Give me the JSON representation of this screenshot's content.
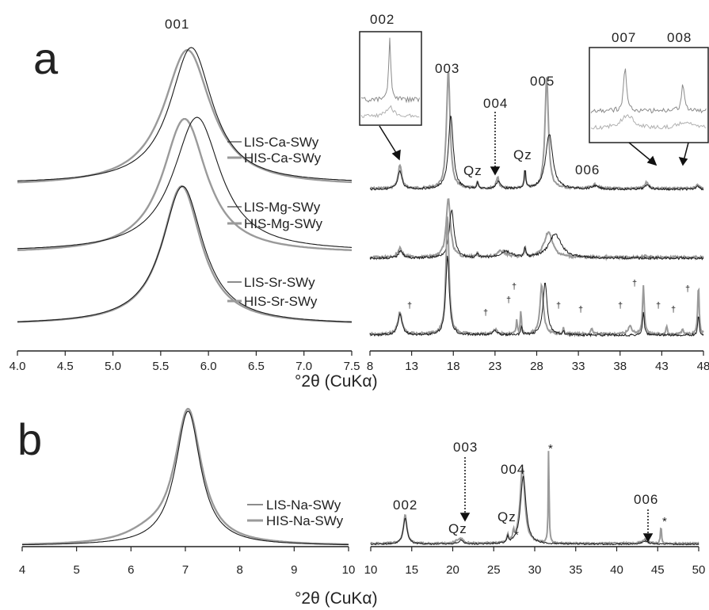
{
  "colors": {
    "LIS": "#1a1a1a",
    "HIS": "#9a9a9a",
    "axis": "#222222"
  },
  "panel_a": {
    "label": "a",
    "xlabel": "°2θ (CuKα)",
    "peak_001": "001",
    "legends": [
      [
        "LIS-Ca-SWy",
        "HIS-Ca-SWy"
      ],
      [
        "LIS-Mg-SWy",
        "HIS-Mg-SWy"
      ],
      [
        "LIS-Sr-SWy",
        "HIS-Sr-SWy"
      ]
    ],
    "right_peaks": {
      "p002": "002",
      "p003": "003",
      "p004": "004",
      "p005": "005",
      "p006": "006",
      "p007": "007",
      "p008": "008",
      "qz": "Qz",
      "dagger": "†"
    }
  },
  "panel_b": {
    "label": "b",
    "xlabel": "°2θ (CuKα)",
    "legends": [
      "LIS-Na-SWy",
      "HIS-Na-SWy"
    ],
    "right_peaks": {
      "p002": "002",
      "p003": "003",
      "p004": "004",
      "p006": "006",
      "qz": "Qz",
      "star": "*"
    }
  },
  "chart_data": [
    {
      "type": "line",
      "panel": "a-left",
      "xlim": [
        4.0,
        7.5
      ],
      "xticks": [
        "4.0",
        "4.5",
        "5.0",
        "5.5",
        "6.0",
        "6.5",
        "7.0",
        "7.5"
      ],
      "series": [
        {
          "name": "LIS-Ca-SWy",
          "peak_2theta": 5.82
        },
        {
          "name": "HIS-Ca-SWy",
          "peak_2theta": 5.78
        },
        {
          "name": "LIS-Mg-SWy",
          "peak_2theta": 5.88
        },
        {
          "name": "HIS-Mg-SWy",
          "peak_2theta": 5.75
        },
        {
          "name": "LIS-Sr-SWy",
          "peak_2theta": 5.73
        },
        {
          "name": "HIS-Sr-SWy",
          "peak_2theta": 5.72
        }
      ]
    },
    {
      "type": "line",
      "panel": "a-right",
      "xlim": [
        8,
        48
      ],
      "xticks": [
        "8",
        "13",
        "18",
        "23",
        "28",
        "33",
        "38",
        "43",
        "48"
      ],
      "peaks_2theta": {
        "002": 11.6,
        "003": 17.4,
        "004": 23.3,
        "005": 29.2,
        "006": 35.0,
        "007": 41.2,
        "008": 47.3,
        "Qz": [
          20.9,
          26.6
        ]
      }
    },
    {
      "type": "line",
      "panel": "b-left",
      "xlim": [
        4,
        10
      ],
      "xticks": [
        "4",
        "5",
        "6",
        "7",
        "8",
        "9",
        "10"
      ],
      "series": [
        {
          "name": "LIS-Na-SWy",
          "peak_2theta": 7.05
        },
        {
          "name": "HIS-Na-SWy",
          "peak_2theta": 7.05
        }
      ]
    },
    {
      "type": "line",
      "panel": "b-right",
      "xlim": [
        10,
        50
      ],
      "xticks": [
        "10",
        "15",
        "20",
        "25",
        "30",
        "35",
        "40",
        "45",
        "50"
      ],
      "peaks_2theta": {
        "002": 14.2,
        "003": 21.0,
        "004": 28.5,
        "006": 43.5,
        "Qz": [
          20.9,
          26.7
        ],
        "*": [
          27.4,
          31.7,
          45.4
        ]
      }
    }
  ]
}
